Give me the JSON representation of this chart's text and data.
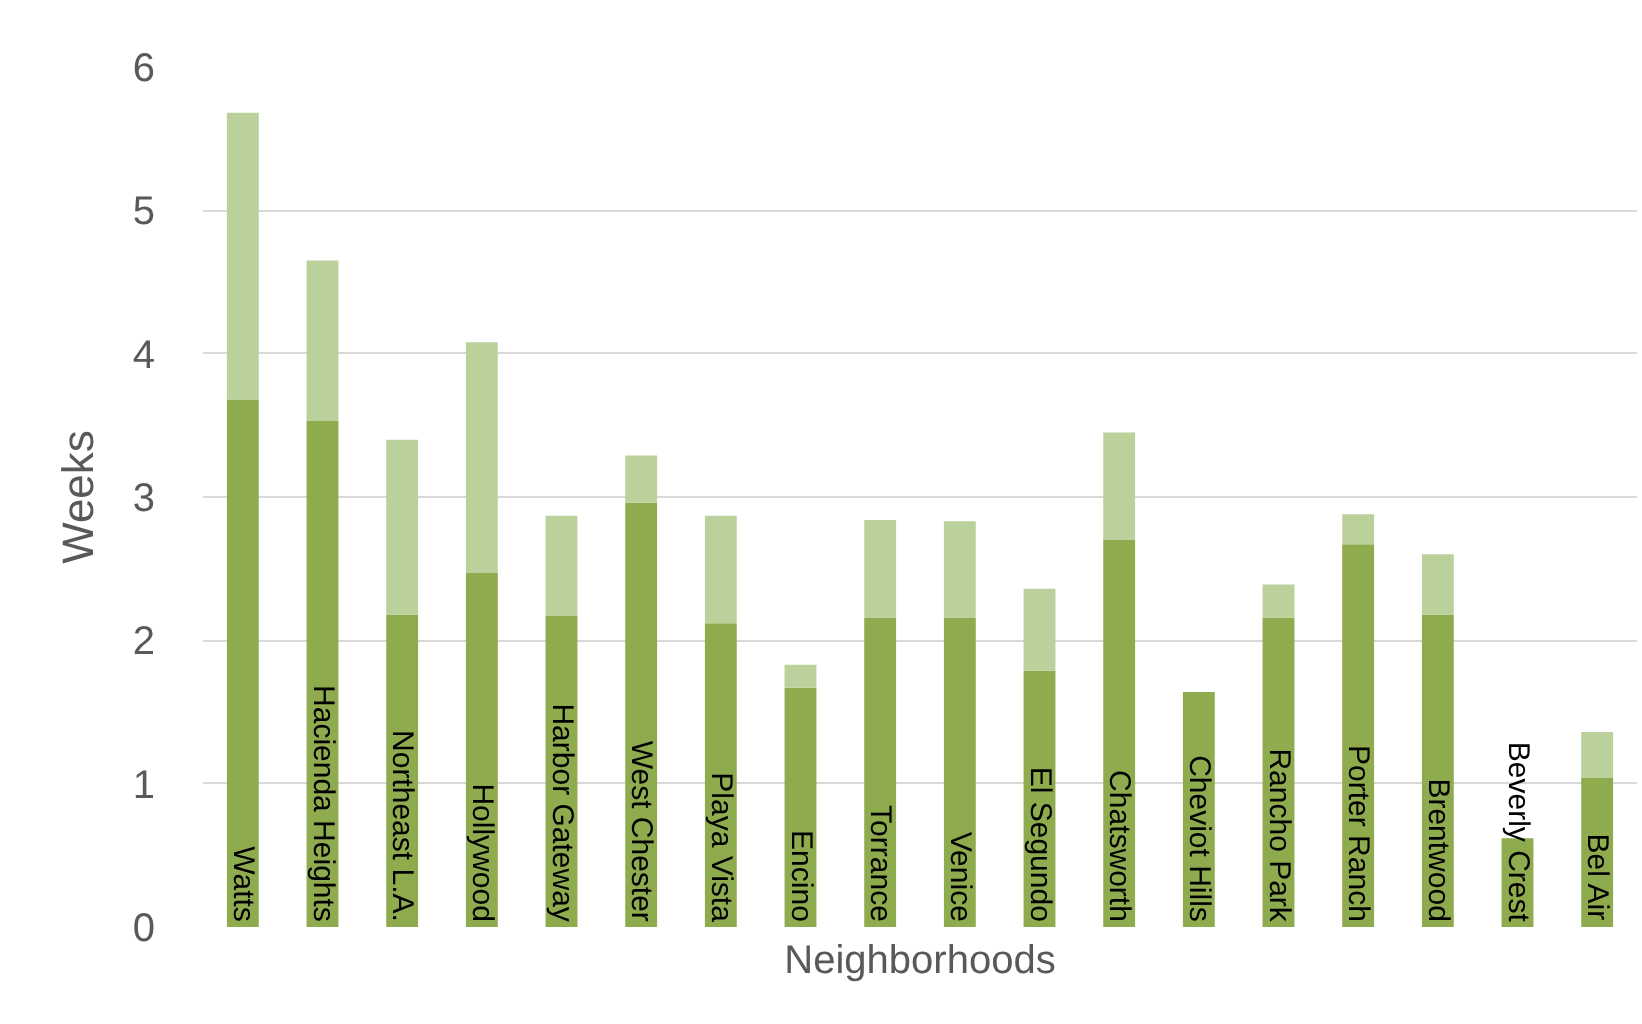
{
  "chart_data": {
    "type": "bar",
    "stacked": true,
    "xlabel": "Neighborhoods",
    "ylabel": "Weeks",
    "categories": [
      "Watts",
      "Hacienda Heights",
      "Northeast L.A.",
      "Hollywood",
      "Harbor Gateway",
      "West Chester",
      "Playa Vista",
      "Encino",
      "Torrance",
      "Venice",
      "El Segundo",
      "Chatsworth",
      "Cheviot Hills",
      "Rancho Park",
      "Porter Ranch",
      "Brentwood",
      "Beverly Crest",
      "Bel Air"
    ],
    "series": [
      {
        "color": "#8eab4e",
        "values": [
          3.68,
          3.53,
          2.18,
          2.47,
          2.17,
          2.96,
          2.12,
          1.67,
          2.16,
          2.16,
          1.79,
          2.7,
          1.64,
          2.16,
          2.67,
          2.18,
          0.62,
          1.04
        ]
      },
      {
        "color": "#bad19b",
        "values": [
          2.0,
          1.12,
          1.22,
          1.61,
          0.7,
          0.33,
          0.75,
          0.16,
          0.68,
          0.67,
          0.57,
          0.75,
          null,
          0.23,
          0.21,
          0.42,
          null,
          0.32
        ]
      }
    ],
    "ylim": [
      0,
      6
    ],
    "yticks": [
      0,
      1,
      2,
      3,
      4,
      5,
      6
    ],
    "grid": "y"
  }
}
